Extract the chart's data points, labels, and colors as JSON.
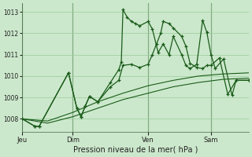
{
  "background_color": "#cce8cc",
  "plot_bg_color": "#cce8cc",
  "line_color": "#1a5c1a",
  "grid_color": "#99cc99",
  "title": "Pression niveau de la mer( hPa )",
  "ylim": [
    1007.4,
    1013.4
  ],
  "yticks": [
    1008,
    1009,
    1010,
    1011,
    1012,
    1013
  ],
  "day_labels": [
    "Jeu",
    "Dim",
    "Ven",
    "Sam"
  ],
  "day_positions": [
    0,
    60,
    150,
    225
  ],
  "line_smooth1_x": [
    0,
    30,
    60,
    90,
    120,
    150,
    180,
    210,
    240,
    270
  ],
  "line_smooth1_y": [
    1008.0,
    1007.8,
    1008.1,
    1008.5,
    1008.9,
    1009.2,
    1009.5,
    1009.7,
    1009.85,
    1009.9
  ],
  "line_smooth2_x": [
    0,
    30,
    60,
    90,
    120,
    150,
    180,
    210,
    240,
    270
  ],
  "line_smooth2_y": [
    1008.0,
    1007.9,
    1008.3,
    1008.8,
    1009.2,
    1009.55,
    1009.8,
    1010.0,
    1010.1,
    1010.15
  ],
  "line_vol1_x": [
    0,
    15,
    20,
    55,
    65,
    70,
    75,
    80,
    90,
    105,
    115,
    120,
    130,
    140,
    150,
    155,
    160,
    165,
    168,
    175,
    180,
    190,
    195,
    200,
    208,
    215,
    220,
    225,
    235,
    245,
    255,
    270
  ],
  "line_vol1_y": [
    1008.0,
    1007.65,
    1007.65,
    1010.15,
    1008.5,
    1008.1,
    1008.6,
    1009.05,
    1008.8,
    1009.5,
    1009.8,
    1010.5,
    1010.55,
    1010.4,
    1010.55,
    1011.0,
    1011.5,
    1012.0,
    1012.55,
    1012.45,
    1012.25,
    1011.85,
    1011.4,
    1010.6,
    1010.4,
    1010.35,
    1010.5,
    1010.5,
    1010.85,
    1009.15,
    1009.8,
    1009.8
  ],
  "line_vol2_x": [
    0,
    15,
    20,
    55,
    65,
    70,
    75,
    80,
    90,
    105,
    115,
    118,
    120,
    125,
    130,
    135,
    140,
    150,
    155,
    162,
    168,
    175,
    180,
    190,
    195,
    200,
    208,
    215,
    220,
    225,
    230,
    240,
    250,
    255,
    270
  ],
  "line_vol2_y": [
    1008.0,
    1007.65,
    1007.65,
    1010.15,
    1008.5,
    1008.1,
    1008.6,
    1009.05,
    1008.8,
    1009.7,
    1010.3,
    1010.65,
    1013.1,
    1012.75,
    1012.55,
    1012.45,
    1012.35,
    1012.55,
    1012.2,
    1011.1,
    1011.5,
    1011.0,
    1011.85,
    1011.0,
    1010.5,
    1010.35,
    1010.55,
    1012.6,
    1012.05,
    1011.0,
    1010.35,
    1010.8,
    1009.1,
    1009.8,
    1009.8
  ]
}
